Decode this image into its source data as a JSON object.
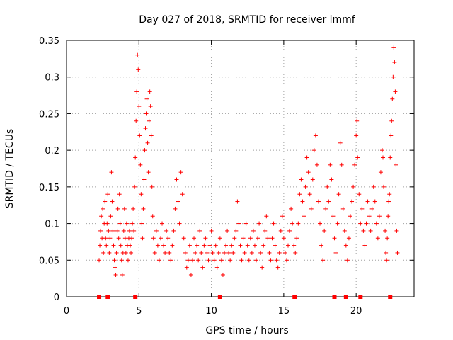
{
  "chart_data": {
    "type": "scatter",
    "title": "Day 027 of 2018, SRMTID for receiver lmmf",
    "xlabel": "GPS time / hours",
    "ylabel": "SRMTID / TECUs",
    "xlim": [
      0,
      24
    ],
    "ylim": [
      0,
      0.35
    ],
    "xticks": [
      "0",
      "5",
      "10",
      "15",
      "20"
    ],
    "xtick_values": [
      0,
      5,
      10,
      15,
      20
    ],
    "yticks": [
      "0",
      "0.05",
      "0.1",
      "0.15",
      "0.2",
      "0.25",
      "0.3",
      "0.35"
    ],
    "ytick_values": [
      0,
      0.05,
      0.1,
      0.15,
      0.2,
      0.25,
      0.3,
      0.35
    ],
    "grid": true,
    "marker": "+",
    "color": "#ff0000",
    "series": [
      {
        "name": "SRMTID",
        "points": [
          [
            2.25,
            0.05
          ],
          [
            2.3,
            0.07
          ],
          [
            2.35,
            0.09
          ],
          [
            2.4,
            0.11
          ],
          [
            2.45,
            0.08
          ],
          [
            2.5,
            0.12
          ],
          [
            2.55,
            0.06
          ],
          [
            2.6,
            0.1
          ],
          [
            2.65,
            0.13
          ],
          [
            2.7,
            0.08
          ],
          [
            2.75,
            0.07
          ],
          [
            2.8,
            0.1
          ],
          [
            2.85,
            0.14
          ],
          [
            2.9,
            0.09
          ],
          [
            2.95,
            0.06
          ],
          [
            3.0,
            0.08
          ],
          [
            3.05,
            0.11
          ],
          [
            3.1,
            0.17
          ],
          [
            3.15,
            0.13
          ],
          [
            3.2,
            0.09
          ],
          [
            3.25,
            0.07
          ],
          [
            3.3,
            0.05
          ],
          [
            3.35,
            0.04
          ],
          [
            3.4,
            0.03
          ],
          [
            3.45,
            0.06
          ],
          [
            3.5,
            0.09
          ],
          [
            3.55,
            0.12
          ],
          [
            3.6,
            0.08
          ],
          [
            3.65,
            0.14
          ],
          [
            3.7,
            0.1
          ],
          [
            3.75,
            0.07
          ],
          [
            3.8,
            0.05
          ],
          [
            3.85,
            0.03
          ],
          [
            3.9,
            0.06
          ],
          [
            3.95,
            0.09
          ],
          [
            4.0,
            0.12
          ],
          [
            4.05,
            0.08
          ],
          [
            4.1,
            0.06
          ],
          [
            4.15,
            0.1
          ],
          [
            4.2,
            0.07
          ],
          [
            4.25,
            0.05
          ],
          [
            4.3,
            0.08
          ],
          [
            4.35,
            0.09
          ],
          [
            4.4,
            0.07
          ],
          [
            4.45,
            0.06
          ],
          [
            4.5,
            0.08
          ],
          [
            4.55,
            0.1
          ],
          [
            4.6,
            0.12
          ],
          [
            4.65,
            0.09
          ],
          [
            4.7,
            0.15
          ],
          [
            4.75,
            0.19
          ],
          [
            4.8,
            0.24
          ],
          [
            4.85,
            0.28
          ],
          [
            4.9,
            0.33
          ],
          [
            4.95,
            0.31
          ],
          [
            5.0,
            0.26
          ],
          [
            5.05,
            0.22
          ],
          [
            5.1,
            0.18
          ],
          [
            5.15,
            0.14
          ],
          [
            5.2,
            0.1
          ],
          [
            5.25,
            0.08
          ],
          [
            5.3,
            0.12
          ],
          [
            5.35,
            0.16
          ],
          [
            5.4,
            0.2
          ],
          [
            5.45,
            0.23
          ],
          [
            5.5,
            0.25
          ],
          [
            5.55,
            0.27
          ],
          [
            5.6,
            0.21
          ],
          [
            5.65,
            0.17
          ],
          [
            5.7,
            0.24
          ],
          [
            5.75,
            0.28
          ],
          [
            5.8,
            0.26
          ],
          [
            5.85,
            0.22
          ],
          [
            5.9,
            0.15
          ],
          [
            5.95,
            0.11
          ],
          [
            6.0,
            0.08
          ],
          [
            6.1,
            0.06
          ],
          [
            6.2,
            0.09
          ],
          [
            6.3,
            0.07
          ],
          [
            6.4,
            0.05
          ],
          [
            6.5,
            0.08
          ],
          [
            6.6,
            0.1
          ],
          [
            6.7,
            0.07
          ],
          [
            6.8,
            0.06
          ],
          [
            6.9,
            0.09
          ],
          [
            7.0,
            0.08
          ],
          [
            7.1,
            0.06
          ],
          [
            7.2,
            0.05
          ],
          [
            7.3,
            0.07
          ],
          [
            7.4,
            0.09
          ],
          [
            7.5,
            0.12
          ],
          [
            7.6,
            0.16
          ],
          [
            7.7,
            0.13
          ],
          [
            7.8,
            0.1
          ],
          [
            7.9,
            0.17
          ],
          [
            8.0,
            0.14
          ],
          [
            8.1,
            0.08
          ],
          [
            8.2,
            0.06
          ],
          [
            8.3,
            0.04
          ],
          [
            8.4,
            0.05
          ],
          [
            8.5,
            0.07
          ],
          [
            8.6,
            0.03
          ],
          [
            8.7,
            0.05
          ],
          [
            8.8,
            0.08
          ],
          [
            8.9,
            0.06
          ],
          [
            9.0,
            0.07
          ],
          [
            9.1,
            0.05
          ],
          [
            9.2,
            0.09
          ],
          [
            9.3,
            0.06
          ],
          [
            9.4,
            0.04
          ],
          [
            9.5,
            0.07
          ],
          [
            9.6,
            0.08
          ],
          [
            9.7,
            0.06
          ],
          [
            9.8,
            0.05
          ],
          [
            9.9,
            0.07
          ],
          [
            10.0,
            0.09
          ],
          [
            10.1,
            0.06
          ],
          [
            10.2,
            0.05
          ],
          [
            10.3,
            0.07
          ],
          [
            10.4,
            0.04
          ],
          [
            10.5,
            0.06
          ],
          [
            10.6,
            0.08
          ],
          [
            10.7,
            0.05
          ],
          [
            10.8,
            0.03
          ],
          [
            10.9,
            0.06
          ],
          [
            11.0,
            0.07
          ],
          [
            11.1,
            0.09
          ],
          [
            11.2,
            0.06
          ],
          [
            11.3,
            0.05
          ],
          [
            11.4,
            0.07
          ],
          [
            11.5,
            0.06
          ],
          [
            11.6,
            0.08
          ],
          [
            11.7,
            0.09
          ],
          [
            11.8,
            0.13
          ],
          [
            11.9,
            0.1
          ],
          [
            12.0,
            0.07
          ],
          [
            12.1,
            0.05
          ],
          [
            12.2,
            0.08
          ],
          [
            12.3,
            0.06
          ],
          [
            12.4,
            0.1
          ],
          [
            12.5,
            0.07
          ],
          [
            12.6,
            0.05
          ],
          [
            12.7,
            0.08
          ],
          [
            12.8,
            0.06
          ],
          [
            12.9,
            0.09
          ],
          [
            13.0,
            0.07
          ],
          [
            13.1,
            0.05
          ],
          [
            13.2,
            0.08
          ],
          [
            13.3,
            0.1
          ],
          [
            13.4,
            0.06
          ],
          [
            13.5,
            0.04
          ],
          [
            13.6,
            0.07
          ],
          [
            13.7,
            0.09
          ],
          [
            13.8,
            0.11
          ],
          [
            13.9,
            0.08
          ],
          [
            14.0,
            0.06
          ],
          [
            14.1,
            0.05
          ],
          [
            14.2,
            0.08
          ],
          [
            14.3,
            0.1
          ],
          [
            14.4,
            0.07
          ],
          [
            14.5,
            0.05
          ],
          [
            14.6,
            0.04
          ],
          [
            14.7,
            0.06
          ],
          [
            14.8,
            0.09
          ],
          [
            14.9,
            0.11
          ],
          [
            15.0,
            0.08
          ],
          [
            15.1,
            0.06
          ],
          [
            15.2,
            0.05
          ],
          [
            15.3,
            0.07
          ],
          [
            15.4,
            0.09
          ],
          [
            15.5,
            0.12
          ],
          [
            15.6,
            0.1
          ],
          [
            15.7,
            0.07
          ],
          [
            15.8,
            0.06
          ],
          [
            15.9,
            0.08
          ],
          [
            16.0,
            0.1
          ],
          [
            16.1,
            0.14
          ],
          [
            16.2,
            0.16
          ],
          [
            16.3,
            0.13
          ],
          [
            16.4,
            0.11
          ],
          [
            16.5,
            0.15
          ],
          [
            16.6,
            0.19
          ],
          [
            16.7,
            0.17
          ],
          [
            16.8,
            0.14
          ],
          [
            16.9,
            0.12
          ],
          [
            17.0,
            0.16
          ],
          [
            17.1,
            0.2
          ],
          [
            17.2,
            0.22
          ],
          [
            17.3,
            0.18
          ],
          [
            17.4,
            0.13
          ],
          [
            17.5,
            0.1
          ],
          [
            17.6,
            0.07
          ],
          [
            17.7,
            0.05
          ],
          [
            17.8,
            0.09
          ],
          [
            17.9,
            0.12
          ],
          [
            18.0,
            0.15
          ],
          [
            18.1,
            0.13
          ],
          [
            18.2,
            0.18
          ],
          [
            18.3,
            0.16
          ],
          [
            18.4,
            0.11
          ],
          [
            18.5,
            0.08
          ],
          [
            18.6,
            0.06
          ],
          [
            18.7,
            0.1
          ],
          [
            18.8,
            0.14
          ],
          [
            18.9,
            0.21
          ],
          [
            19.0,
            0.18
          ],
          [
            19.1,
            0.12
          ],
          [
            19.2,
            0.09
          ],
          [
            19.3,
            0.07
          ],
          [
            19.4,
            0.05
          ],
          [
            19.5,
            0.08
          ],
          [
            19.6,
            0.11
          ],
          [
            19.7,
            0.13
          ],
          [
            19.8,
            0.15
          ],
          [
            19.9,
            0.18
          ],
          [
            20.0,
            0.22
          ],
          [
            20.05,
            0.24
          ],
          [
            20.1,
            0.19
          ],
          [
            20.2,
            0.14
          ],
          [
            20.3,
            0.1
          ],
          [
            20.4,
            0.12
          ],
          [
            20.5,
            0.09
          ],
          [
            20.6,
            0.07
          ],
          [
            20.7,
            0.1
          ],
          [
            20.8,
            0.13
          ],
          [
            20.9,
            0.11
          ],
          [
            21.0,
            0.09
          ],
          [
            21.1,
            0.12
          ],
          [
            21.2,
            0.15
          ],
          [
            21.3,
            0.13
          ],
          [
            21.4,
            0.1
          ],
          [
            21.5,
            0.08
          ],
          [
            21.6,
            0.11
          ],
          [
            21.7,
            0.17
          ],
          [
            21.8,
            0.2
          ],
          [
            21.85,
            0.19
          ],
          [
            21.9,
            0.15
          ],
          [
            22.0,
            0.09
          ],
          [
            22.05,
            0.06
          ],
          [
            22.1,
            0.05
          ],
          [
            22.15,
            0.08
          ],
          [
            22.2,
            0.11
          ],
          [
            22.25,
            0.13
          ],
          [
            22.3,
            0.14
          ],
          [
            22.35,
            0.19
          ],
          [
            22.4,
            0.22
          ],
          [
            22.45,
            0.24
          ],
          [
            22.5,
            0.27
          ],
          [
            22.55,
            0.3
          ],
          [
            22.6,
            0.34
          ],
          [
            22.65,
            0.32
          ],
          [
            22.7,
            0.28
          ],
          [
            22.75,
            0.18
          ],
          [
            22.8,
            0.09
          ],
          [
            22.85,
            0.06
          ]
        ]
      }
    ],
    "bottom_markers_x": [
      2.25,
      2.85,
      4.75,
      10.6,
      15.75,
      18.5,
      19.3,
      20.3,
      22.35
    ]
  }
}
